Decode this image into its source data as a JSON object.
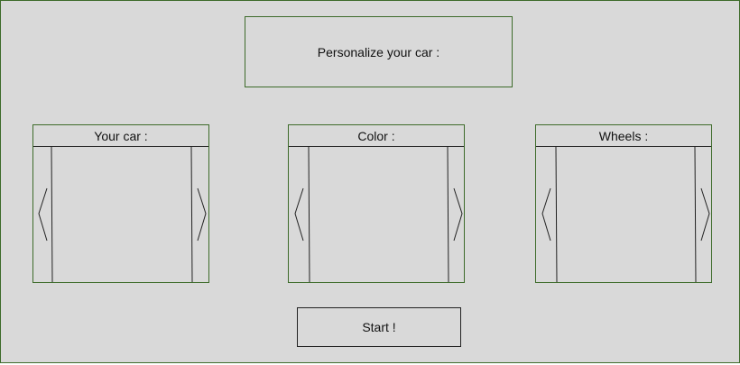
{
  "title": "Personalize your car :",
  "selectors": [
    {
      "label": "Your car :",
      "prev_icon": "chevron-left-icon",
      "next_icon": "chevron-right-icon"
    },
    {
      "label": "Color :",
      "prev_icon": "chevron-left-icon",
      "next_icon": "chevron-right-icon"
    },
    {
      "label": "Wheels :",
      "prev_icon": "chevron-left-icon",
      "next_icon": "chevron-right-icon"
    }
  ],
  "start_label": "Start !",
  "colors": {
    "background": "#d9d9d9",
    "border_accent": "#3d6b2a",
    "line": "#222222"
  }
}
